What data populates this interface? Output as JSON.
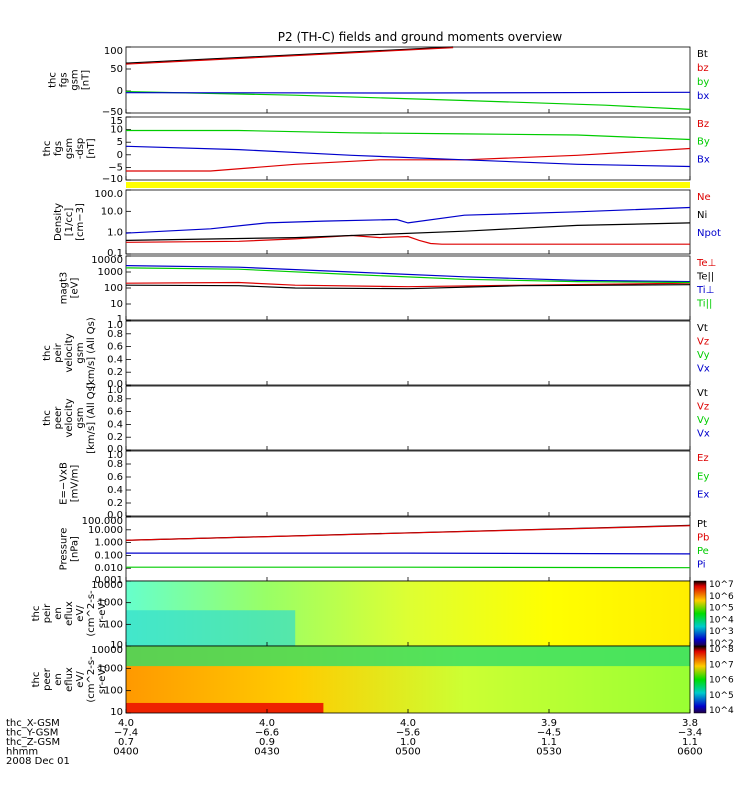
{
  "title": "P2 (TH-C) fields and ground moments overview",
  "colors": {
    "black": "#000000",
    "red": "#dd0000",
    "green": "#00cc00",
    "blue": "#0000cc",
    "yellow": "#ffff00"
  },
  "chart_data": [
    {
      "type": "line",
      "panel": "fgs_gsm",
      "ylabel": [
        "thc",
        "fgs",
        "gsm",
        "[nT]"
      ],
      "yticks": [
        "100",
        "50",
        "0",
        "−50"
      ],
      "ylim": [
        -80,
        105
      ],
      "series": [
        {
          "name": "Bt",
          "color": "black",
          "x": [
            0,
            0.58
          ],
          "y": [
            60,
            105
          ]
        },
        {
          "name": "bz",
          "color": "red",
          "x": [
            0,
            0.58
          ],
          "y": [
            57,
            103
          ]
        },
        {
          "name": "by",
          "color": "green",
          "x": [
            0,
            0.3,
            0.6,
            0.85,
            1
          ],
          "y": [
            -20,
            -30,
            -45,
            -58,
            -70
          ]
        },
        {
          "name": "bx",
          "color": "blue",
          "x": [
            0,
            0.5,
            1
          ],
          "y": [
            -23,
            -24,
            -22
          ]
        }
      ],
      "legend": [
        "Bt",
        "bz",
        "by",
        "bx"
      ]
    },
    {
      "type": "line",
      "panel": "fgs_gsm_dsp",
      "ylabel": [
        "thc",
        "fgs",
        "gsm",
        "-dsp",
        "[nT]"
      ],
      "yticks": [
        "15",
        "10",
        "5",
        "0",
        "−5",
        "−10"
      ],
      "ylim": [
        -12,
        16
      ],
      "series": [
        {
          "name": "Bz",
          "color": "red",
          "x": [
            0,
            0.15,
            0.3,
            0.45,
            0.6,
            0.8,
            1
          ],
          "y": [
            -8,
            -8,
            -5,
            -3,
            -3,
            -1,
            2
          ]
        },
        {
          "name": "By",
          "color": "green",
          "x": [
            0,
            0.2,
            0.4,
            0.6,
            0.8,
            1
          ],
          "y": [
            10,
            10,
            9,
            8.5,
            8,
            6
          ]
        },
        {
          "name": "Bx",
          "color": "blue",
          "x": [
            0,
            0.2,
            0.4,
            0.6,
            0.8,
            1
          ],
          "y": [
            3,
            1.5,
            -1,
            -3,
            -5,
            -6
          ]
        }
      ],
      "legend": [
        "Bz",
        "By",
        "Bx"
      ]
    },
    {
      "type": "line",
      "panel": "density",
      "ylabel": [
        "Density",
        "[1/cc]",
        "[cm−3]"
      ],
      "yticks": [
        "100.0",
        "10.0",
        "1.0",
        "0.1"
      ],
      "ylim": [
        0.1,
        200
      ],
      "log": true,
      "series": [
        {
          "name": "Ne",
          "color": "red",
          "x": [
            0,
            0.2,
            0.3,
            0.4,
            0.45,
            0.5,
            0.52,
            0.54,
            0.56,
            1
          ],
          "y": [
            0.4,
            0.45,
            0.6,
            0.9,
            0.7,
            0.8,
            0.5,
            0.35,
            0.32,
            0.32
          ]
        },
        {
          "name": "Ni",
          "color": "black",
          "x": [
            0,
            0.3,
            0.6,
            0.8,
            1
          ],
          "y": [
            0.5,
            0.7,
            1.5,
            3,
            4
          ]
        },
        {
          "name": "Npot",
          "color": "blue",
          "x": [
            0,
            0.15,
            0.25,
            0.35,
            0.48,
            0.5,
            0.6,
            0.8,
            1
          ],
          "y": [
            1.2,
            2,
            4,
            5,
            6,
            4,
            10,
            15,
            25
          ]
        }
      ],
      "legend": [
        "Ne",
        "Ni",
        "Npot"
      ]
    },
    {
      "type": "line",
      "panel": "temperature",
      "ylabel": [
        "magt3",
        "[eV]"
      ],
      "yticks": [
        "10000",
        "1000",
        "100",
        "10",
        "1"
      ],
      "ylim": [
        1,
        10000
      ],
      "log": true,
      "series": [
        {
          "name": "Te⊥",
          "color": "red",
          "x": [
            0,
            0.2,
            0.3,
            0.5,
            0.7,
            1
          ],
          "y": [
            200,
            220,
            150,
            120,
            150,
            200
          ]
        },
        {
          "name": "Te||",
          "color": "black",
          "x": [
            0,
            0.2,
            0.3,
            0.5,
            0.7,
            1
          ],
          "y": [
            150,
            140,
            100,
            90,
            140,
            160
          ]
        },
        {
          "name": "Ti⊥",
          "color": "blue",
          "x": [
            0,
            0.2,
            0.4,
            0.6,
            0.8,
            1
          ],
          "y": [
            2500,
            2000,
            1000,
            500,
            300,
            250
          ]
        },
        {
          "name": "Ti||",
          "color": "green",
          "x": [
            0,
            0.2,
            0.4,
            0.6,
            0.8,
            1
          ],
          "y": [
            1800,
            1500,
            700,
            350,
            250,
            220
          ]
        }
      ],
      "legend": [
        "Te⊥",
        "Te||",
        "Ti⊥",
        "Ti||"
      ]
    },
    {
      "type": "line",
      "panel": "peir_velocity",
      "ylabel": [
        "thc",
        "peir",
        "velocity",
        "gsm",
        "[km/s] (All Qs)"
      ],
      "yticks": [
        "1.0",
        "0.8",
        "0.6",
        "0.4",
        "0.2",
        "0.0"
      ],
      "ylim": [
        0,
        1
      ],
      "series": [],
      "legend": [
        "Vt",
        "Vz",
        "Vy",
        "Vx"
      ]
    },
    {
      "type": "line",
      "panel": "peer_velocity",
      "ylabel": [
        "thc",
        "peer",
        "velocity",
        "gsm",
        "[km/s] (All Qs)"
      ],
      "yticks": [
        "1.0",
        "0.8",
        "0.6",
        "0.4",
        "0.2",
        "0.0"
      ],
      "ylim": [
        0,
        1
      ],
      "series": [],
      "legend": [
        "Vt",
        "Vz",
        "Vy",
        "Vx"
      ]
    },
    {
      "type": "line",
      "panel": "efield",
      "ylabel": [
        "E=−VxB",
        "[mV/m]"
      ],
      "yticks": [
        "1.0",
        "0.8",
        "0.6",
        "0.4",
        "0.2",
        "0.0"
      ],
      "ylim": [
        0,
        1
      ],
      "series": [],
      "legend": [
        "Ez",
        "Ey",
        "Ex"
      ]
    },
    {
      "type": "line",
      "panel": "pressure",
      "ylabel": [
        "Pressure",
        "[nPa]"
      ],
      "yticks": [
        "100.000",
        "10.000",
        "1.000",
        "0.100",
        "0.010",
        "0.001"
      ],
      "ylim": [
        0.001,
        100
      ],
      "log": true,
      "series": [
        {
          "name": "Pt",
          "color": "black",
          "x": [
            0,
            1
          ],
          "y": [
            1.5,
            22
          ]
        },
        {
          "name": "Pb",
          "color": "red",
          "x": [
            0,
            1
          ],
          "y": [
            1.5,
            21
          ]
        },
        {
          "name": "Pe",
          "color": "green",
          "x": [
            0,
            0.5,
            1
          ],
          "y": [
            0.012,
            0.012,
            0.011
          ]
        },
        {
          "name": "Pi",
          "color": "blue",
          "x": [
            0,
            0.5,
            1
          ],
          "y": [
            0.15,
            0.15,
            0.13
          ]
        }
      ],
      "legend": [
        "Pt",
        "Pb",
        "Pe",
        "Pi"
      ]
    },
    {
      "type": "heatmap",
      "panel": "peir_eflux",
      "ylabel": [
        "thc",
        "peir",
        "en",
        "eflux",
        "eV/",
        "(cm^2-s-",
        "sr-eV)"
      ],
      "yticks": [
        "10000",
        "1000",
        "100",
        "10"
      ],
      "colorbar": [
        "10^7",
        "10^6",
        "10^5",
        "10^4",
        "10^3",
        "10^2"
      ]
    },
    {
      "type": "heatmap",
      "panel": "peer_eflux",
      "ylabel": [
        "thc",
        "peer",
        "en",
        "eflux",
        "eV/",
        "(cm^2-s-",
        "sr-eV)"
      ],
      "yticks": [
        "10000",
        "1000",
        "100",
        "10"
      ],
      "colorbar": [
        "10^8",
        "10^7",
        "10^6",
        "10^5",
        "10^4"
      ]
    }
  ],
  "xaxis": {
    "rows": [
      {
        "label": "thc_X-GSM",
        "values": [
          "4.0",
          "4.0",
          "4.0",
          "3.9",
          "3.8"
        ]
      },
      {
        "label": "thc_Y-GSM",
        "values": [
          "−7.4",
          "−6.6",
          "−5.6",
          "−4.5",
          "−3.4"
        ]
      },
      {
        "label": "thc_Z-GSM",
        "values": [
          "0.7",
          "0.9",
          "1.0",
          "1.1",
          "1.1"
        ]
      },
      {
        "label": "hhmm",
        "values": [
          "0400",
          "0430",
          "0500",
          "0530",
          "0600"
        ]
      }
    ],
    "date": "2008 Dec 01"
  }
}
